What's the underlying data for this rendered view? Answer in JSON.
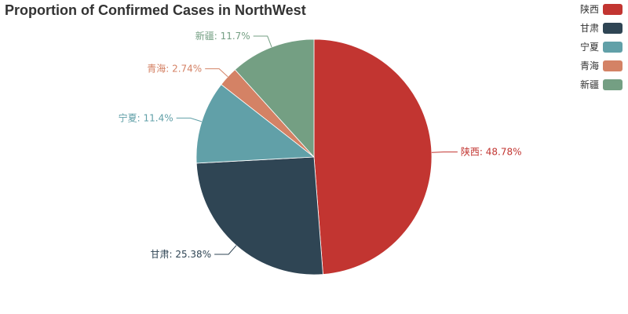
{
  "chart_data": {
    "type": "pie",
    "title": "Proportion of Confirmed Cases in NorthWest",
    "legend_position": "top-right",
    "slices": [
      {
        "name": "陕西",
        "value": 48.78,
        "label": "陕西: 48.78%",
        "color": "#c23531"
      },
      {
        "name": "甘肃",
        "value": 25.38,
        "label": "甘肃: 25.38%",
        "color": "#2f4554"
      },
      {
        "name": "宁夏",
        "value": 11.4,
        "label": "宁夏: 11.4%",
        "color": "#61a0a8"
      },
      {
        "name": "青海",
        "value": 2.74,
        "label": "青海: 2.74%",
        "color": "#d48265"
      },
      {
        "name": "新疆",
        "value": 11.7,
        "label": "新疆: 11.7%",
        "color": "#749f83"
      }
    ]
  }
}
